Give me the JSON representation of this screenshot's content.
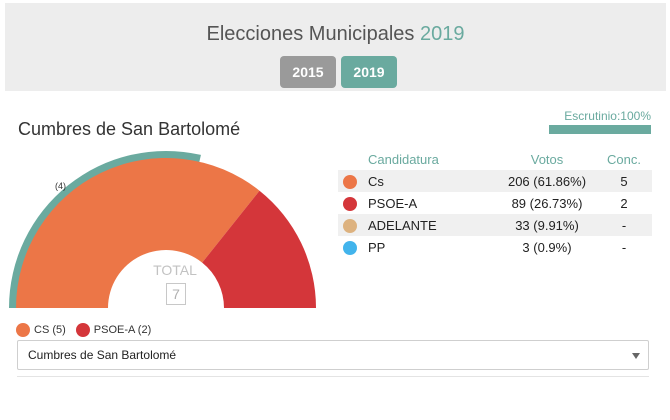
{
  "header": {
    "title_prefix": "Elecciones Municipales",
    "title_year": "2019",
    "year_buttons": [
      "2015",
      "2019"
    ],
    "active_year": "2019",
    "background_color": "#ededed",
    "accent_color": "#6aaa9f",
    "inactive_color": "#9a9a9a"
  },
  "municipality": {
    "name": "Cumbres de San Bartolomé",
    "scrutiny_label": "Escrutinio:100%",
    "scrutiny_percent": 100
  },
  "chart_data": {
    "type": "half-donut",
    "total_label": "TOTAL",
    "total_seats": "7",
    "majority_seats": 4,
    "majority_note": "(4)",
    "series": [
      {
        "name": "CS",
        "seats": 5,
        "color": "#ec7647"
      },
      {
        "name": "PSOE-A",
        "seats": 2,
        "color": "#d4363a"
      }
    ],
    "majority_arc_color": "#6aaa9f"
  },
  "results_table": {
    "headers": {
      "party": "Candidatura",
      "votes": "Votos",
      "seats": "Conc."
    },
    "rows": [
      {
        "party": "Cs",
        "votes": "206 (61.86%)",
        "seats": "5",
        "color": "#ec7647"
      },
      {
        "party": "PSOE-A",
        "votes": "89 (26.73%)",
        "seats": "2",
        "color": "#d4363a"
      },
      {
        "party": "ADELANTE",
        "votes": "33 (9.91%)",
        "seats": "-",
        "color": "#ddb27f"
      },
      {
        "party": "PP",
        "votes": "3 (0.9%)",
        "seats": "-",
        "color": "#42b4ec"
      }
    ]
  },
  "legend": [
    {
      "label": "CS (5)",
      "color": "#ec7647"
    },
    {
      "label": "PSOE-A (2)",
      "color": "#d4363a"
    }
  ],
  "select": {
    "value": "Cumbres de San Bartolomé"
  }
}
